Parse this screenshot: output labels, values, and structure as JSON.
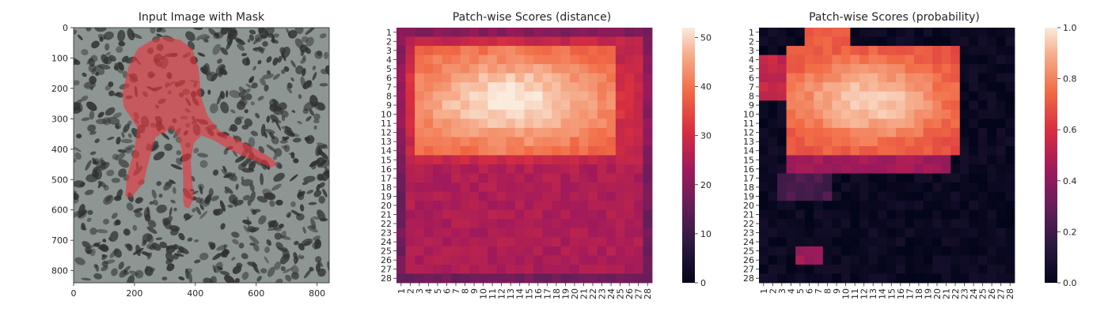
{
  "chart_data": [
    {
      "type": "image",
      "title": "Input Image with Mask",
      "xlim": [
        0,
        840
      ],
      "ylim": [
        840,
        0
      ],
      "xticks": [
        "0",
        "200",
        "400",
        "600",
        "800"
      ],
      "yticks": [
        "0",
        "100",
        "200",
        "300",
        "400",
        "500",
        "600",
        "700",
        "800"
      ],
      "background_color": "#8e9693",
      "spot_color": "#2f3130",
      "mask_color": "#e8343c",
      "mask_polygon": [
        [
          160,
          220
        ],
        [
          180,
          130
        ],
        [
          210,
          70
        ],
        [
          250,
          45
        ],
        [
          300,
          30
        ],
        [
          350,
          40
        ],
        [
          390,
          70
        ],
        [
          410,
          130
        ],
        [
          420,
          230
        ],
        [
          440,
          290
        ],
        [
          480,
          340
        ],
        [
          540,
          370
        ],
        [
          600,
          400
        ],
        [
          650,
          430
        ],
        [
          670,
          450
        ],
        [
          650,
          460
        ],
        [
          600,
          440
        ],
        [
          550,
          420
        ],
        [
          500,
          395
        ],
        [
          460,
          370
        ],
        [
          420,
          355
        ],
        [
          395,
          380
        ],
        [
          385,
          440
        ],
        [
          390,
          510
        ],
        [
          395,
          560
        ],
        [
          380,
          595
        ],
        [
          365,
          590
        ],
        [
          360,
          570
        ],
        [
          360,
          490
        ],
        [
          355,
          400
        ],
        [
          340,
          350
        ],
        [
          320,
          330
        ],
        [
          300,
          345
        ],
        [
          270,
          360
        ],
        [
          250,
          430
        ],
        [
          230,
          510
        ],
        [
          190,
          560
        ],
        [
          170,
          555
        ],
        [
          175,
          490
        ],
        [
          200,
          400
        ],
        [
          210,
          330
        ],
        [
          190,
          300
        ],
        [
          165,
          260
        ]
      ]
    },
    {
      "type": "heatmap",
      "title": "Patch-wise Scores (distance)",
      "rows": 28,
      "cols": 28,
      "row_labels": [
        "1",
        "2",
        "3",
        "4",
        "5",
        "6",
        "7",
        "8",
        "9",
        "10",
        "11",
        "12",
        "13",
        "14",
        "15",
        "16",
        "17",
        "18",
        "19",
        "20",
        "21",
        "22",
        "23",
        "24",
        "25",
        "26",
        "27",
        "28"
      ],
      "col_labels": [
        "1",
        "2",
        "3",
        "4",
        "5",
        "6",
        "7",
        "8",
        "9",
        "10",
        "11",
        "12",
        "13",
        "14",
        "15",
        "16",
        "17",
        "18",
        "19",
        "20",
        "21",
        "22",
        "23",
        "24",
        "25",
        "26",
        "27",
        "28"
      ],
      "colorbar": {
        "min": 0,
        "max": 52,
        "ticks": [
          "0",
          "10",
          "20",
          "30",
          "40",
          "50"
        ]
      },
      "colormap": "rocket"
    },
    {
      "type": "heatmap",
      "title": "Patch-wise Scores (probability)",
      "rows": 28,
      "cols": 28,
      "row_labels": [
        "1",
        "2",
        "3",
        "4",
        "5",
        "6",
        "7",
        "8",
        "9",
        "10",
        "11",
        "12",
        "13",
        "14",
        "15",
        "16",
        "17",
        "18",
        "19",
        "20",
        "21",
        "22",
        "23",
        "24",
        "25",
        "26",
        "27",
        "28"
      ],
      "col_labels": [
        "1",
        "2",
        "3",
        "4",
        "5",
        "6",
        "7",
        "8",
        "9",
        "10",
        "11",
        "12",
        "13",
        "14",
        "15",
        "16",
        "17",
        "18",
        "19",
        "20",
        "21",
        "22",
        "23",
        "24",
        "25",
        "26",
        "27",
        "28"
      ],
      "colorbar": {
        "min": 0.0,
        "max": 1.0,
        "ticks": [
          "0.0",
          "0.2",
          "0.4",
          "0.6",
          "0.8",
          "1.0"
        ]
      },
      "colormap": "rocket"
    }
  ]
}
